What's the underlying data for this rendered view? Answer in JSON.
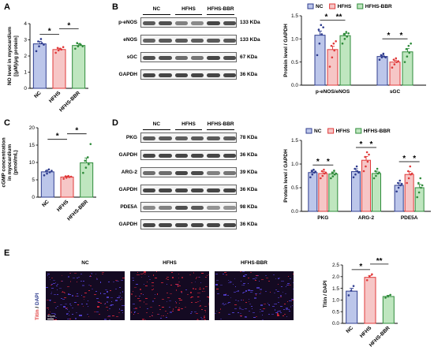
{
  "panels": {
    "A": "A",
    "B": "B",
    "C": "C",
    "D": "D",
    "E": "E"
  },
  "colors": {
    "NC": "#2f3d8f",
    "HFHS": "#e03a3a",
    "HFHS-BBR": "#2e8b3a",
    "NC_fill": "#bcc6ea",
    "HFHS_fill": "#f6c6c6",
    "HFHS-BBR_fill": "#bfe6bf"
  },
  "groups": [
    "NC",
    "HFHS",
    "HFHS-BBR"
  ],
  "chart_data": [
    {
      "id": "A",
      "type": "bar",
      "ylabel": "NO level in myocardium\n[(μM)/μg protein]",
      "ylim": [
        0,
        4
      ],
      "yticks": [
        0,
        1,
        2,
        3,
        4
      ],
      "categories": [
        "NC",
        "HFHS",
        "HFHS-BBR"
      ],
      "values": [
        2.75,
        2.4,
        2.65
      ],
      "errors": [
        0.15,
        0.08,
        0.1
      ],
      "points": [
        [
          2.3,
          2.6,
          2.8,
          2.9,
          3.05,
          2.7
        ],
        [
          2.2,
          2.35,
          2.4,
          2.5,
          2.45,
          2.55
        ],
        [
          2.45,
          2.6,
          2.7,
          2.8,
          2.75,
          2.6
        ]
      ],
      "significance": [
        {
          "from": 0,
          "to": 1,
          "label": "*"
        },
        {
          "from": 1,
          "to": 2,
          "label": "*"
        }
      ]
    },
    {
      "id": "B-right",
      "type": "bar",
      "ylabel": "Protein level / GAPDH",
      "ylim": [
        0,
        1.5
      ],
      "yticks": [
        "0.0",
        "0.5",
        "1.0",
        "1.5"
      ],
      "categories": [
        "p-eNOS/eNOS",
        "sGC"
      ],
      "series": [
        {
          "name": "NC",
          "values": [
            1.08,
            0.62
          ],
          "errors": [
            0.09,
            0.03
          ]
        },
        {
          "name": "HFHS",
          "values": [
            0.77,
            0.5
          ],
          "errors": [
            0.07,
            0.04
          ]
        },
        {
          "name": "HFHS-BBR",
          "values": [
            1.07,
            0.72
          ],
          "errors": [
            0.05,
            0.07
          ]
        }
      ],
      "points": [
        [
          [
            0.65,
            0.9,
            1.1,
            1.2,
            1.3,
            1.25
          ],
          [
            0.55,
            0.6,
            0.62,
            0.65,
            0.68,
            0.6
          ]
        ],
        [
          [
            0.4,
            0.6,
            0.75,
            0.85,
            0.9,
            0.95
          ],
          [
            0.38,
            0.45,
            0.5,
            0.55,
            0.58,
            0.52
          ]
        ],
        [
          [
            0.9,
            1.0,
            1.05,
            1.1,
            1.15,
            1.12
          ],
          [
            0.5,
            0.62,
            0.7,
            0.78,
            0.85,
            0.9
          ]
        ]
      ],
      "significance": [
        {
          "cat": 0,
          "from": 0,
          "to": 1,
          "label": "*"
        },
        {
          "cat": 0,
          "from": 1,
          "to": 2,
          "label": "**"
        },
        {
          "cat": 1,
          "from": 0,
          "to": 1,
          "label": "*"
        },
        {
          "cat": 1,
          "from": 1,
          "to": 2,
          "label": "*"
        }
      ],
      "legend": "top"
    },
    {
      "id": "C",
      "type": "bar",
      "ylabel": "cGMP concentration\nin myocardium\n(pmol/mL)",
      "ylim": [
        0,
        20
      ],
      "yticks": [
        0,
        5,
        10,
        15,
        20
      ],
      "categories": [
        "NC",
        "HFHS",
        "HFHS-BBR"
      ],
      "values": [
        7.3,
        5.8,
        9.9
      ],
      "errors": [
        0.5,
        0.25,
        1.4
      ],
      "points": [
        [
          6.3,
          6.8,
          7.2,
          7.5,
          8.0,
          7.6
        ],
        [
          5.3,
          5.6,
          5.8,
          6.0,
          6.1,
          5.9
        ],
        [
          7.0,
          8.5,
          9.5,
          10.5,
          11.5,
          15.3
        ]
      ],
      "significance": [
        {
          "from": 0,
          "to": 1,
          "label": "*"
        },
        {
          "from": 1,
          "to": 2,
          "label": "*"
        }
      ]
    },
    {
      "id": "D-right",
      "type": "bar",
      "ylabel": "Protein level / GAPDH",
      "ylim": [
        0,
        1.5
      ],
      "yticks": [
        "0.0",
        "0.5",
        "1.0",
        "1.5"
      ],
      "categories": [
        "PKG",
        "ARG-2",
        "PDE5A"
      ],
      "series": [
        {
          "name": "NC",
          "values": [
            0.82,
            0.84,
            0.55
          ],
          "errors": [
            0.05,
            0.06,
            0.05
          ]
        },
        {
          "name": "HFHS",
          "values": [
            0.8,
            1.08,
            0.78
          ],
          "errors": [
            0.04,
            0.08,
            0.06
          ]
        },
        {
          "name": "HFHS-BBR",
          "values": [
            0.79,
            0.8,
            0.5
          ],
          "errors": [
            0.04,
            0.05,
            0.07
          ]
        }
      ],
      "points": [
        [
          [
            0.72,
            0.78,
            0.82,
            0.85,
            0.88,
            0.84
          ],
          [
            0.72,
            0.78,
            0.85,
            0.9,
            0.95,
            0.82
          ],
          [
            0.42,
            0.5,
            0.55,
            0.6,
            0.65,
            0.58
          ]
        ],
        [
          [
            0.7,
            0.75,
            0.8,
            0.85,
            0.88,
            0.82
          ],
          [
            0.85,
            0.95,
            1.05,
            1.15,
            1.25,
            1.2
          ],
          [
            0.6,
            0.7,
            0.78,
            0.85,
            0.95,
            0.8
          ]
        ],
        [
          [
            0.7,
            0.74,
            0.78,
            0.82,
            0.86,
            0.8
          ],
          [
            0.7,
            0.75,
            0.8,
            0.85,
            0.9,
            0.82
          ],
          [
            0.3,
            0.4,
            0.5,
            0.6,
            0.7,
            0.55
          ]
        ]
      ],
      "significance": [
        {
          "cat": 0,
          "from": 0,
          "to": 1,
          "label": "*"
        },
        {
          "cat": 0,
          "from": 1,
          "to": 2,
          "label": "*"
        },
        {
          "cat": 1,
          "from": 0,
          "to": 1,
          "label": "*"
        },
        {
          "cat": 1,
          "from": 1,
          "to": 2,
          "label": "*"
        },
        {
          "cat": 2,
          "from": 0,
          "to": 1,
          "label": "*"
        },
        {
          "cat": 2,
          "from": 1,
          "to": 2,
          "label": "*"
        }
      ],
      "legend": "top"
    },
    {
      "id": "E-right",
      "type": "bar",
      "ylabel": "Titin / DAPI",
      "ylim": [
        0,
        2.5
      ],
      "yticks": [
        "0.0",
        "0.5",
        "1.0",
        "1.5",
        "2.0",
        "2.5"
      ],
      "categories": [
        "NC",
        "HFHS",
        "HFHS-BBR"
      ],
      "values": [
        1.38,
        1.97,
        1.15
      ],
      "errors": [
        0.12,
        0.08,
        0.05
      ],
      "points": [
        [
          1.2,
          1.4,
          1.6
        ],
        [
          1.85,
          2.0,
          2.1
        ],
        [
          1.1,
          1.15,
          1.22
        ]
      ],
      "significance": [
        {
          "from": 0,
          "to": 1,
          "label": "*"
        },
        {
          "from": 1,
          "to": 2,
          "label": "**"
        }
      ]
    }
  ],
  "blots": {
    "B": {
      "groups": [
        "NC",
        "HFHS",
        "HFHS-BBR"
      ],
      "rows": [
        {
          "label": "p-eNOS",
          "kda": "133 KDa"
        },
        {
          "label": "eNOS",
          "kda": "133 KDa"
        },
        {
          "label": "sGC",
          "kda": "67 KDa"
        },
        {
          "label": "GAPDH",
          "kda": "36 KDa"
        }
      ]
    },
    "D": {
      "groups": [
        "NC",
        "HFHS",
        "HFHS-BBR"
      ],
      "rows": [
        {
          "label": "PKG",
          "kda": "78 KDa"
        },
        {
          "label": "GAPDH",
          "kda": "36 KDa"
        },
        {
          "label": "ARG-2",
          "kda": "39 KDa"
        },
        {
          "label": "GAPDH",
          "kda": "36 KDa"
        },
        {
          "label": "PDE5A",
          "kda": "98 KDa"
        },
        {
          "label": "GAPDH",
          "kda": "36 KDa"
        }
      ]
    }
  },
  "micrographs": {
    "titles": [
      "NC",
      "HFHS",
      "HFHS-BBR"
    ],
    "stain_titin": "Titin",
    "stain_sep": " / ",
    "stain_dapi": "DAPI",
    "scale": "50μm"
  }
}
